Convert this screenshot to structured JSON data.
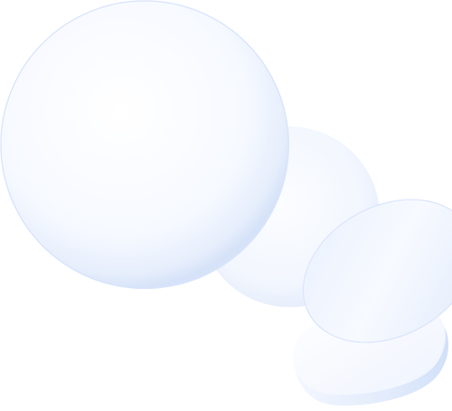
{
  "scene": {
    "background": "#ffffff",
    "shapes": [
      {
        "name": "large-translucent-sphere",
        "kind": "sphere",
        "tint": "#dfe9fb"
      },
      {
        "name": "rear-translucent-sphere",
        "kind": "sphere",
        "tint": "#e8f0fd"
      },
      {
        "name": "tilted-translucent-disc",
        "kind": "disc",
        "tint": "#d7e4fa"
      },
      {
        "name": "lower-translucent-lens",
        "kind": "lens",
        "tint": "#e3ecfc"
      }
    ]
  }
}
